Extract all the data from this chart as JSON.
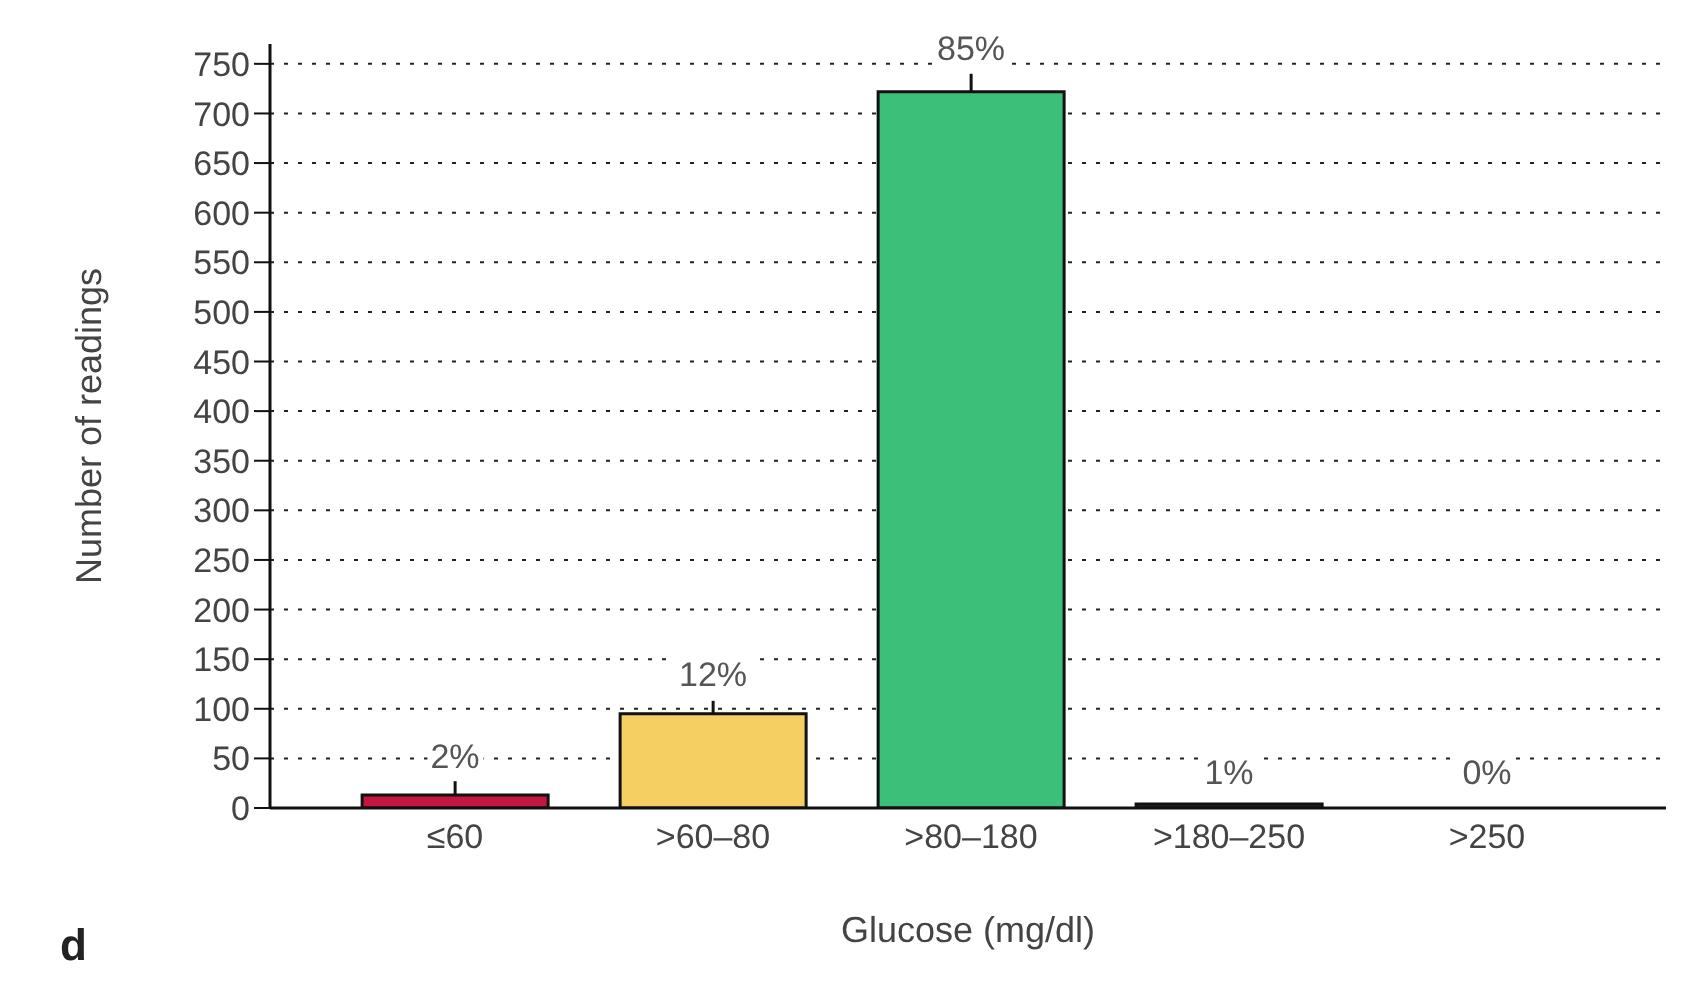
{
  "chart_data": {
    "type": "bar",
    "xlabel": "Glucose (mg/dl)",
    "ylabel": "Number of readings",
    "categories": [
      "≤60",
      ">60–80",
      ">80–180",
      ">180–250",
      ">250"
    ],
    "values": [
      13,
      95,
      722,
      4,
      0
    ],
    "colors": [
      "#c4173f",
      "#f6cf62",
      "#3cbf78",
      "#2a2a2a",
      "#2a2a2a"
    ],
    "errors": [
      [
        13,
        27
      ],
      [
        95,
        108
      ],
      [
        722,
        740
      ],
      null,
      null
    ],
    "ylim": [
      0,
      770
    ],
    "yticks": [
      0,
      50,
      100,
      150,
      200,
      250,
      300,
      350,
      400,
      450,
      500,
      550,
      600,
      650,
      700,
      750
    ],
    "grid": "y",
    "annotations": [
      {
        "text": "2%",
        "x": "≤60",
        "y": 27
      },
      {
        "text": "12%",
        "x": ">60–80",
        "y": 108
      },
      {
        "text": "85%",
        "x": ">80–180",
        "y": 740
      },
      {
        "text": "1%",
        "x": ">180–250",
        "y": 10
      },
      {
        "text": "0%",
        "x": ">250",
        "y": 10
      },
      "d"
    ]
  }
}
